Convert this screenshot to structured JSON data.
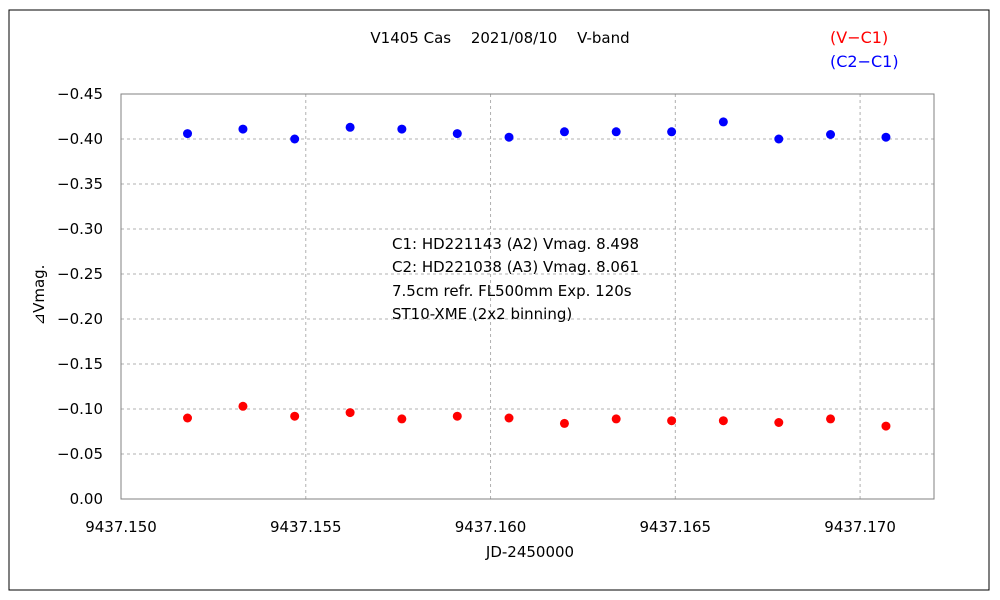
{
  "chart_data": {
    "type": "scatter",
    "title": "V1405 Cas　 2021/08/10 　V-band",
    "xlabel": "JD-2450000",
    "ylabel": "⊿Vmag.",
    "xlim": [
      9437.15,
      9437.172
    ],
    "ylim": [
      0.0,
      -0.45
    ],
    "y_inverted": true,
    "x_ticks": [
      9437.15,
      9437.155,
      9437.16,
      9437.165,
      9437.17
    ],
    "x_tick_labels": [
      "9437.150",
      "9437.155",
      "9437.160",
      "9437.165",
      "9437.170"
    ],
    "y_ticks": [
      0.0,
      -0.05,
      -0.1,
      -0.15,
      -0.2,
      -0.25,
      -0.3,
      -0.35,
      -0.4,
      -0.45
    ],
    "y_tick_labels": [
      "0.00",
      "−0.05",
      "−0.10",
      "−0.15",
      "−0.20",
      "−0.25",
      "−0.30",
      "−0.35",
      "−0.40",
      "−0.45"
    ],
    "grid": true,
    "legend_position": "top-right",
    "series": [
      {
        "name": "(V−C1)",
        "color": "#ff0000",
        "x": [
          9437.1518,
          9437.1533,
          9437.1547,
          9437.1562,
          9437.1576,
          9437.1591,
          9437.1605,
          9437.162,
          9437.1634,
          9437.1649,
          9437.1663,
          9437.1678,
          9437.1692,
          9437.1707
        ],
        "y": [
          -0.09,
          -0.103,
          -0.092,
          -0.096,
          -0.089,
          -0.092,
          -0.09,
          -0.084,
          -0.089,
          -0.087,
          -0.087,
          -0.085,
          -0.089,
          -0.081
        ]
      },
      {
        "name": "(C2−C1)",
        "color": "#0000ff",
        "x": [
          9437.1518,
          9437.1533,
          9437.1547,
          9437.1562,
          9437.1576,
          9437.1591,
          9437.1605,
          9437.162,
          9437.1634,
          9437.1649,
          9437.1663,
          9437.1678,
          9437.1692,
          9437.1707
        ],
        "y": [
          -0.406,
          -0.411,
          -0.4,
          -0.413,
          -0.411,
          -0.406,
          -0.402,
          -0.408,
          -0.408,
          -0.408,
          -0.419,
          -0.4,
          -0.405,
          -0.402
        ]
      }
    ],
    "annotations": [
      "C1: HD221143 (A2) Vmag. 8.498",
      "C2: HD221038 (A3) Vmag. 8.061",
      "7.5cm refr. FL500mm Exp. 120s",
      "ST10-XME (2x2 binning)"
    ]
  }
}
